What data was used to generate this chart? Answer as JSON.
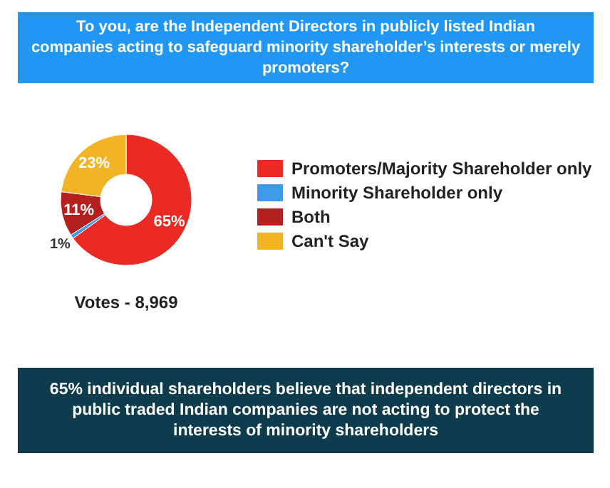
{
  "chart_data": {
    "type": "donut",
    "title": "To you, are the Independent Directors in publicly listed Indian companies acting to safeguard minority shareholder’s interests or merely promoters?",
    "categories": [
      "Promoters/Majority Shareholder only",
      "Minority Shareholder only",
      "Both",
      "Can't Say"
    ],
    "values": [
      65,
      1,
      11,
      23
    ],
    "colors": [
      "#ec2a24",
      "#3d9be9",
      "#b41f1f",
      "#f2b324"
    ],
    "value_labels": [
      "65%",
      "1%",
      "11%",
      "23%"
    ],
    "legend": "right",
    "annotations": [
      "Votes - 8,969",
      "65% individual shareholders believe that independent directors in public traded Indian companies are not acting to protect the interests of minority shareholders"
    ]
  }
}
